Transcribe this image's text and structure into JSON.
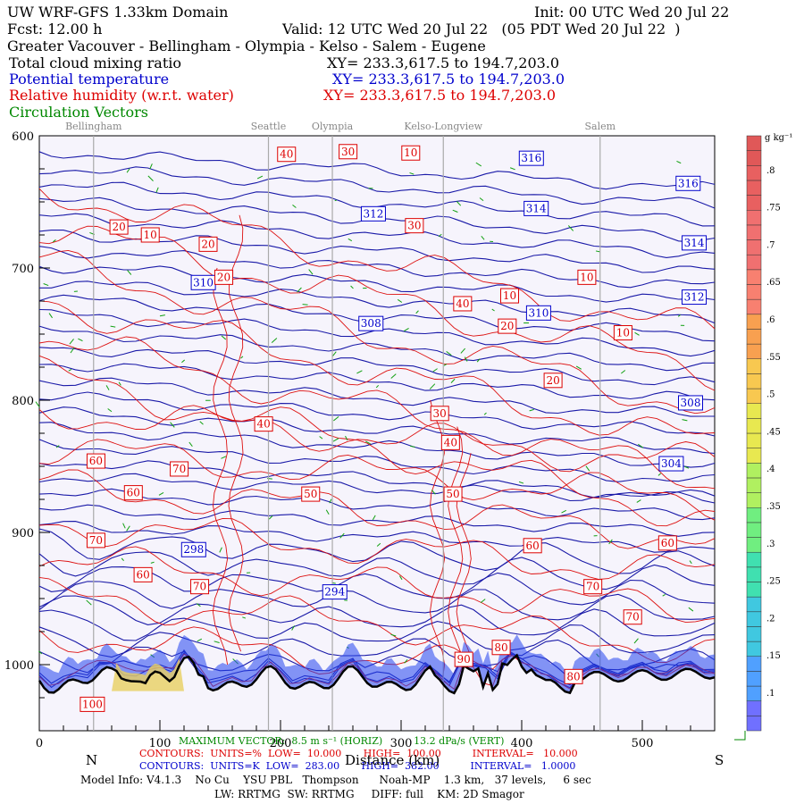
{
  "header": {
    "model": "UW WRF-GFS 1.33km Domain",
    "init": "Init: 00 UTC Wed 20 Jul 22",
    "fcst": "Fcst:   12.00 h",
    "valid": "Valid: 12 UTC Wed 20 Jul 22   (05 PDT Wed 20 Jul 22  )",
    "region": "Greater Vacouver - Bellingham - Olympia - Kelso - Salem - Eugene",
    "fields": [
      {
        "name": "Total cloud mixing ratio",
        "xy": "XY= 233.3,617.5 to 194.7,203.0",
        "color": "#000000"
      },
      {
        "name": "Potential temperature",
        "xy": "XY= 233.3,617.5 to 194.7,203.0",
        "color": "#0000cc"
      },
      {
        "name": "Relative humidity (w.r.t. water)",
        "xy": "XY= 233.3,617.5 to 194.7,203.0",
        "color": "#dd0000"
      },
      {
        "name": "Circulation Vectors",
        "xy": "",
        "color": "#008800"
      }
    ]
  },
  "cities": [
    "Bellingham",
    "Seattle",
    "Olympia",
    "Kelso-Longview",
    "Salem"
  ],
  "colorbar": {
    "unit": "g kg⁻¹",
    "labels": [
      ".1",
      ".15",
      ".2",
      ".25",
      ".3",
      ".35",
      ".4",
      ".45",
      ".5",
      ".55",
      ".6",
      ".65",
      ".7",
      ".75",
      ".8"
    ]
  },
  "footer": {
    "north": "N",
    "south": "S",
    "vector_max": "MAXIMUM VECTOR:  8.5 m s⁻¹ (HORIZ)          13.2 dPa/s (VERT)",
    "rh_contours": "CONTOURS:  UNITS=%  LOW=  10.000       HIGH=  100.00          INTERVAL=   10.000",
    "theta_contours": "CONTOURS:  UNITS=K  LOW=  283.00       HIGH=  382.00          INTERVAL=   1.0000",
    "xlabel": "Distance (km)",
    "model_info": "Model Info: V4.1.3    No Cu    YSU PBL   Thompson      Noah-MP    1.3 km,   37 levels,     6 sec",
    "physics": "LW: RRTMG  SW: RRTMG     DIFF: full    KM: 2D Smagor"
  },
  "chart_data": {
    "type": "cross-section",
    "x_range": [
      0,
      560
    ],
    "y_range_hPa": [
      600,
      1050
    ],
    "y_reversed": true,
    "x_ticks": [
      0,
      100,
      200,
      300,
      400,
      500
    ],
    "y_ticks": [
      600,
      700,
      800,
      900,
      1000
    ],
    "city_x_km": [
      45,
      190,
      243,
      335,
      465
    ],
    "theta_labels": [
      {
        "value": "316",
        "x": 408,
        "p": 617
      },
      {
        "value": "316",
        "x": 538,
        "p": 636
      },
      {
        "value": "314",
        "x": 412,
        "p": 655
      },
      {
        "value": "314",
        "x": 543,
        "p": 681
      },
      {
        "value": "312",
        "x": 277,
        "p": 659
      },
      {
        "value": "312",
        "x": 543,
        "p": 722
      },
      {
        "value": "310",
        "x": 136,
        "p": 711
      },
      {
        "value": "310",
        "x": 414,
        "p": 734
      },
      {
        "value": "308",
        "x": 275,
        "p": 742
      },
      {
        "value": "308",
        "x": 540,
        "p": 802
      },
      {
        "value": "304",
        "x": 524,
        "p": 848
      },
      {
        "value": "298",
        "x": 128,
        "p": 913
      },
      {
        "value": "294",
        "x": 245,
        "p": 945
      }
    ],
    "rh_labels": [
      {
        "value": "40",
        "x": 205,
        "p": 614
      },
      {
        "value": "30",
        "x": 256,
        "p": 612
      },
      {
        "value": "10",
        "x": 308,
        "p": 613
      },
      {
        "value": "20",
        "x": 66,
        "p": 669
      },
      {
        "value": "10",
        "x": 92,
        "p": 675
      },
      {
        "value": "20",
        "x": 140,
        "p": 682
      },
      {
        "value": "30",
        "x": 311,
        "p": 668
      },
      {
        "value": "20",
        "x": 153,
        "p": 707
      },
      {
        "value": "10",
        "x": 454,
        "p": 707
      },
      {
        "value": "10",
        "x": 390,
        "p": 721
      },
      {
        "value": "40",
        "x": 351,
        "p": 727
      },
      {
        "value": "20",
        "x": 388,
        "p": 744
      },
      {
        "value": "10",
        "x": 484,
        "p": 749
      },
      {
        "value": "20",
        "x": 426,
        "p": 785
      },
      {
        "value": "30",
        "x": 332,
        "p": 810
      },
      {
        "value": "40",
        "x": 186,
        "p": 818
      },
      {
        "value": "40",
        "x": 341,
        "p": 832
      },
      {
        "value": "60",
        "x": 47,
        "p": 846
      },
      {
        "value": "70",
        "x": 116,
        "p": 852
      },
      {
        "value": "60",
        "x": 78,
        "p": 870
      },
      {
        "value": "50",
        "x": 225,
        "p": 871
      },
      {
        "value": "50",
        "x": 343,
        "p": 871
      },
      {
        "value": "70",
        "x": 47,
        "p": 906
      },
      {
        "value": "60",
        "x": 409,
        "p": 910
      },
      {
        "value": "60",
        "x": 521,
        "p": 908
      },
      {
        "value": "60",
        "x": 86,
        "p": 932
      },
      {
        "value": "70",
        "x": 133,
        "p": 941
      },
      {
        "value": "70",
        "x": 459,
        "p": 941
      },
      {
        "value": "70",
        "x": 492,
        "p": 964
      },
      {
        "value": "80",
        "x": 383,
        "p": 987
      },
      {
        "value": "90",
        "x": 352,
        "p": 996
      },
      {
        "value": "80",
        "x": 443,
        "p": 1009
      },
      {
        "value": "100",
        "x": 44,
        "p": 1030
      }
    ]
  }
}
